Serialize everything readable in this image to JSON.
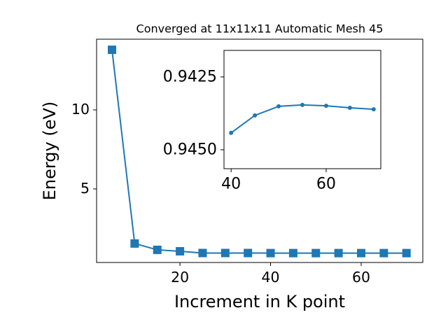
{
  "chart_data": [
    {
      "type": "line",
      "title": "Converged at 11x11x11 Automatic Mesh 45",
      "x_label": "Increment in K point",
      "y_label": "Energy (eV)",
      "x": [
        5,
        10,
        15,
        20,
        25,
        30,
        35,
        40,
        45,
        50,
        55,
        60,
        65,
        70
      ],
      "series": [
        {
          "name": "Energy",
          "color": "#1f77b4",
          "marker": "square",
          "values": [
            13.8,
            1.55,
            1.15,
            1.06,
            0.95,
            0.95,
            0.95,
            0.944,
            0.944,
            0.944,
            0.944,
            0.944,
            0.944,
            0.944
          ]
        }
      ],
      "xlim": [
        1.6,
        73.6
      ],
      "ylim": [
        0.35,
        14.47
      ],
      "xticks": [
        20,
        40,
        60
      ],
      "yticks": [
        5,
        10
      ]
    },
    {
      "type": "line",
      "x": [
        40,
        45,
        50,
        55,
        60,
        65,
        70
      ],
      "series": [
        {
          "name": "Energy",
          "color": "#1f77b4",
          "marker": "circle",
          "values": [
            0.94442,
            0.94382,
            0.94351,
            0.94346,
            0.94349,
            0.94356,
            0.94361
          ]
        }
      ],
      "xlim": [
        38.5,
        71.5
      ],
      "ylim": [
        0.94565,
        0.94159
      ],
      "xticks": [
        40,
        60
      ],
      "yticks": [
        0.9425,
        {
          "value": 0.945,
          "label": "0.9450"
        }
      ]
    }
  ]
}
